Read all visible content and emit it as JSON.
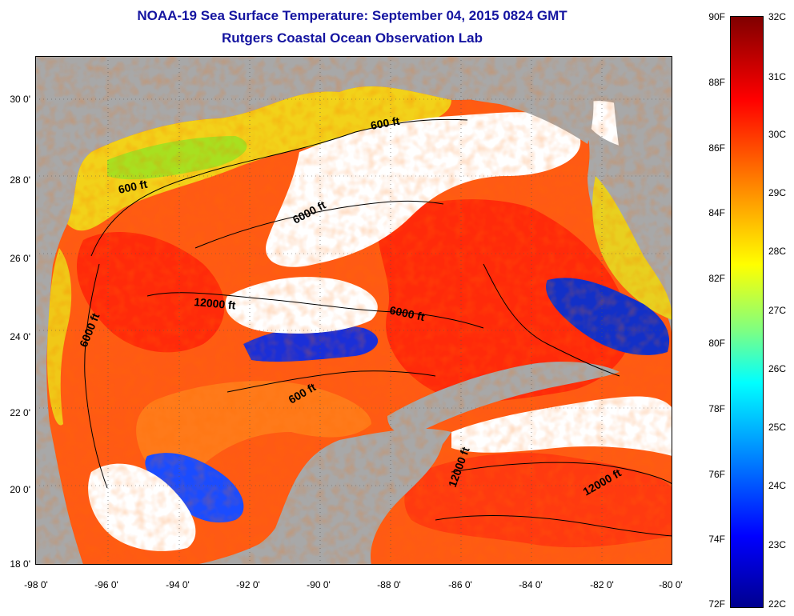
{
  "title": {
    "line1": "NOAA-19 Sea Surface Temperature:  September 04, 2015 0824 GMT",
    "line2": "Rutgers Coastal Ocean Observation Lab"
  },
  "axes": {
    "latitude_labels": [
      "30 0'",
      "28 0'",
      "26 0'",
      "24 0'",
      "22 0'",
      "20 0'",
      "18 0'"
    ],
    "longitude_labels": [
      "-98 0'",
      "-96 0'",
      "-94 0'",
      "-92 0'",
      "-90 0'",
      "-88 0'",
      "-86 0'",
      "-84 0'",
      "-82 0'",
      "-80 0'"
    ]
  },
  "contour_labels": {
    "c1": "600 ft",
    "c2": "600 ft",
    "c3": "6000 ft",
    "c4": "6000 ft",
    "c5": "12000 ft",
    "c6": "6000 ft",
    "c7": "600 ft",
    "c8": "12000 ft",
    "c9": "12000 ft"
  },
  "colorbar": {
    "fahrenheit": [
      "90F",
      "88F",
      "86F",
      "84F",
      "82F",
      "80F",
      "78F",
      "76F",
      "74F",
      "72F"
    ],
    "celsius": [
      "32C",
      "31C",
      "30C",
      "29C",
      "28C",
      "27C",
      "26C",
      "25C",
      "24C",
      "23C",
      "22C"
    ],
    "colors": {
      "min": "#00008f",
      "mid": "#ffff00",
      "max": "#800000"
    }
  },
  "colors": {
    "land": "#a8a8a8",
    "cloud": "#ffffff",
    "title": "#1414a0"
  }
}
